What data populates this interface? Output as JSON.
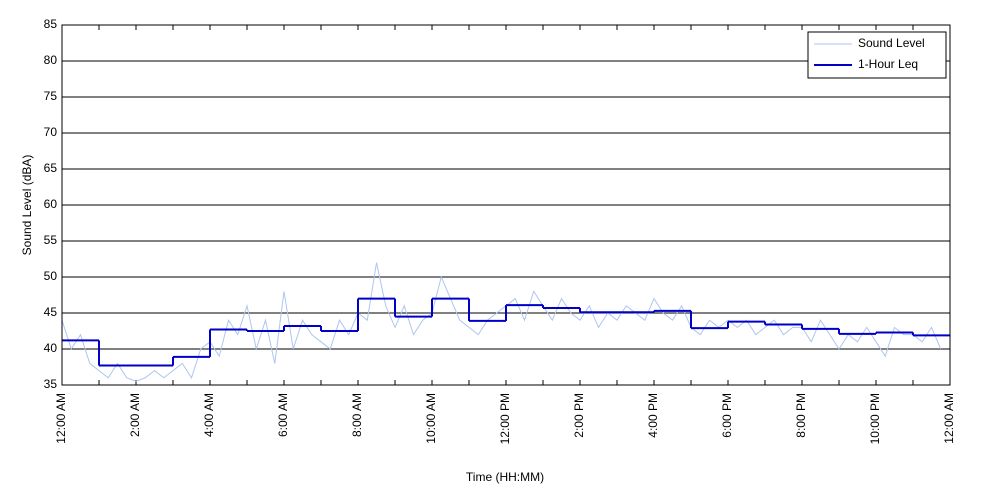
{
  "chart_data": {
    "type": "line",
    "xlabel": "Time (HH:MM)",
    "ylabel": "Sound Level (dBA)",
    "xlim": [
      0,
      24
    ],
    "ylim": [
      35,
      85
    ],
    "xticks": [
      {
        "value": 0,
        "label": "12:00 AM"
      },
      {
        "value": 2,
        "label": "2:00 AM"
      },
      {
        "value": 4,
        "label": "4:00 AM"
      },
      {
        "value": 6,
        "label": "6:00 AM"
      },
      {
        "value": 8,
        "label": "8:00 AM"
      },
      {
        "value": 10,
        "label": "10:00 AM"
      },
      {
        "value": 12,
        "label": "12:00 PM"
      },
      {
        "value": 14,
        "label": "2:00 PM"
      },
      {
        "value": 16,
        "label": "4:00 PM"
      },
      {
        "value": 18,
        "label": "6:00 PM"
      },
      {
        "value": 20,
        "label": "8:00 PM"
      },
      {
        "value": 22,
        "label": "10:00 PM"
      },
      {
        "value": 24,
        "label": "12:00 AM"
      }
    ],
    "xminorticks": [
      1,
      3,
      5,
      7,
      9,
      11,
      13,
      15,
      17,
      19,
      21,
      23
    ],
    "yticks": [
      35,
      40,
      45,
      50,
      55,
      60,
      65,
      70,
      75,
      80,
      85
    ],
    "grid": true,
    "legend": "upper right",
    "series": [
      {
        "name": "Sound Level",
        "color": "#aec5ef",
        "drawstyle": "default",
        "x": [
          0,
          0.25,
          0.5,
          0.75,
          1,
          1.25,
          1.5,
          1.75,
          2,
          2.25,
          2.5,
          2.75,
          3,
          3.25,
          3.5,
          3.75,
          4,
          4.25,
          4.5,
          4.75,
          5,
          5.25,
          5.5,
          5.75,
          6,
          6.25,
          6.5,
          6.75,
          7,
          7.25,
          7.5,
          7.75,
          8,
          8.25,
          8.5,
          8.75,
          9,
          9.25,
          9.5,
          9.75,
          10,
          10.25,
          10.5,
          10.75,
          11,
          11.25,
          11.5,
          11.75,
          12,
          12.25,
          12.5,
          12.75,
          13,
          13.25,
          13.5,
          13.75,
          14,
          14.25,
          14.5,
          14.75,
          15,
          15.25,
          15.5,
          15.75,
          16,
          16.25,
          16.5,
          16.75,
          17,
          17.25,
          17.5,
          17.75,
          18,
          18.25,
          18.5,
          18.75,
          19,
          19.25,
          19.5,
          19.75,
          20,
          20.25,
          20.5,
          20.75,
          21,
          21.25,
          21.5,
          21.75,
          22,
          22.25,
          22.5,
          22.75,
          23,
          23.25,
          23.5,
          23.75
        ],
        "values": [
          44,
          40,
          42,
          38,
          37,
          36,
          38,
          36,
          35.5,
          36,
          37,
          36,
          37,
          38,
          36,
          40,
          41,
          39,
          44,
          42,
          46,
          40,
          44,
          38,
          48,
          40,
          44,
          42,
          41,
          40,
          44,
          42,
          45,
          44,
          52,
          46,
          43,
          46,
          42,
          44,
          45,
          50,
          47,
          44,
          43,
          42,
          44,
          45,
          46,
          47,
          44,
          48,
          46,
          44,
          47,
          45,
          44,
          46,
          43,
          45,
          44,
          46,
          45,
          44,
          47,
          45,
          44,
          46,
          43,
          42,
          44,
          43,
          44,
          43,
          44,
          42,
          43,
          44,
          42,
          43,
          43,
          41,
          44,
          42,
          40,
          42,
          41,
          43,
          41,
          39,
          43,
          42,
          42,
          41,
          43,
          40
        ]
      },
      {
        "name": "1-Hour Leq",
        "color": "#0000c8",
        "drawstyle": "steps-post",
        "x": [
          0,
          1,
          2,
          3,
          4,
          5,
          6,
          7,
          8,
          9,
          10,
          11,
          12,
          13,
          14,
          15,
          16,
          17,
          18,
          19,
          20,
          21,
          22,
          23
        ],
        "values": [
          41.2,
          37.7,
          37.7,
          38.9,
          42.7,
          42.5,
          43.2,
          42.5,
          47.0,
          44.5,
          47.0,
          43.9,
          46.1,
          45.7,
          45.1,
          45.1,
          45.3,
          42.9,
          43.8,
          43.4,
          42.8,
          42.1,
          42.3,
          41.9
        ]
      }
    ]
  }
}
